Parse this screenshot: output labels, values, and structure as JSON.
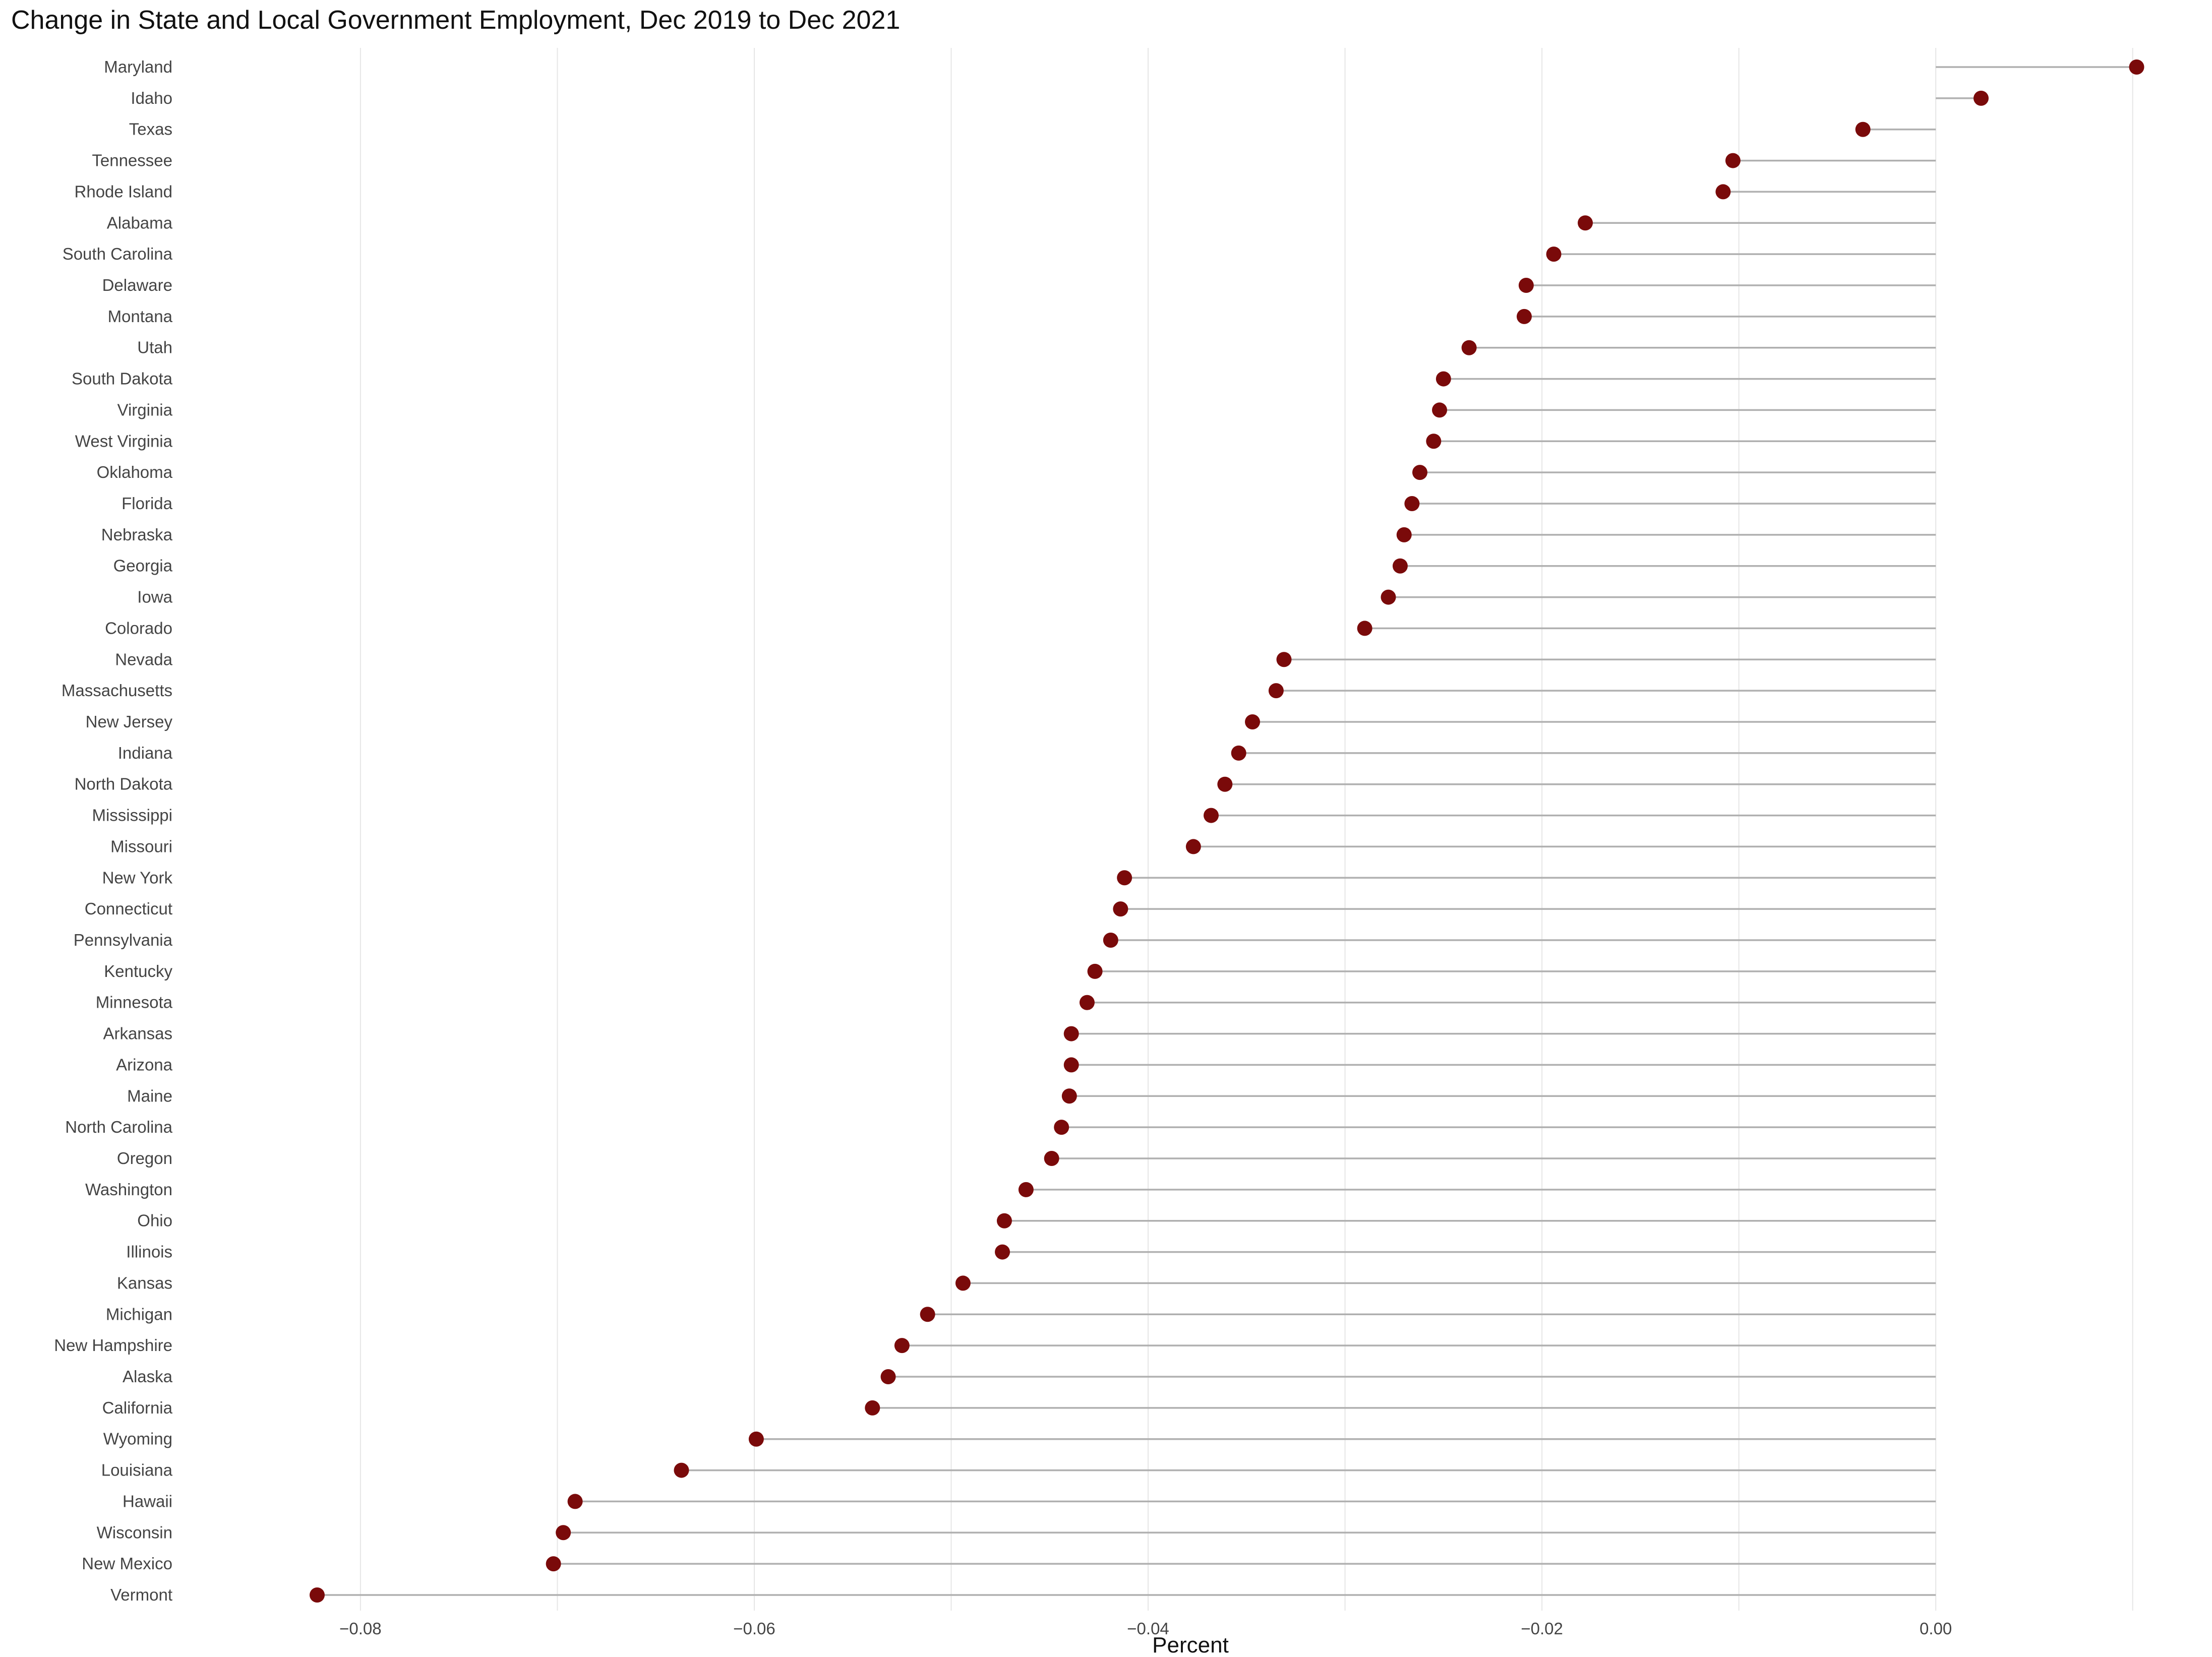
{
  "chart_data": {
    "type": "lollipop",
    "title": "Change in State and Local Government Employment, Dec 2019 to Dec 2021",
    "xlabel": "Percent",
    "ylabel": "",
    "xlim": [
      -0.0875,
      0.0118
    ],
    "xticks": [
      -0.08,
      -0.06,
      -0.04,
      -0.02,
      0.0
    ],
    "xtick_labels": [
      "−0.08",
      "−0.06",
      "−0.04",
      "−0.02",
      "0.00"
    ],
    "grid": "vertical",
    "categories": [
      "Maryland",
      "Idaho",
      "Texas",
      "Tennessee",
      "Rhode Island",
      "Alabama",
      "South Carolina",
      "Delaware",
      "Montana",
      "Utah",
      "South Dakota",
      "Virginia",
      "West Virginia",
      "Oklahoma",
      "Florida",
      "Nebraska",
      "Georgia",
      "Iowa",
      "Colorado",
      "Nevada",
      "Massachusetts",
      "New Jersey",
      "Indiana",
      "North Dakota",
      "Mississippi",
      "Missouri",
      "New York",
      "Connecticut",
      "Pennsylvania",
      "Kentucky",
      "Minnesota",
      "Arkansas",
      "Arizona",
      "Maine",
      "North Carolina",
      "Oregon",
      "Washington",
      "Ohio",
      "Illinois",
      "Kansas",
      "Michigan",
      "New Hampshire",
      "Alaska",
      "California",
      "Wyoming",
      "Louisiana",
      "Hawaii",
      "Wisconsin",
      "New Mexico",
      "Vermont"
    ],
    "values": [
      0.0102,
      0.0023,
      -0.0037,
      -0.0103,
      -0.0108,
      -0.0178,
      -0.0194,
      -0.0208,
      -0.0209,
      -0.0237,
      -0.025,
      -0.0252,
      -0.0255,
      -0.0262,
      -0.0266,
      -0.027,
      -0.0272,
      -0.0278,
      -0.029,
      -0.0331,
      -0.0335,
      -0.0347,
      -0.0354,
      -0.0361,
      -0.0368,
      -0.0377,
      -0.0412,
      -0.0414,
      -0.0419,
      -0.0427,
      -0.0431,
      -0.0439,
      -0.0439,
      -0.044,
      -0.0444,
      -0.0449,
      -0.0462,
      -0.0473,
      -0.0474,
      -0.0494,
      -0.0512,
      -0.0525,
      -0.0532,
      -0.054,
      -0.0599,
      -0.0637,
      -0.0691,
      -0.0697,
      -0.0702,
      -0.0822
    ],
    "colors": {
      "point": "#7a0a0a",
      "stem": "#b0b0b0",
      "grid": "#e6e6e6"
    }
  }
}
